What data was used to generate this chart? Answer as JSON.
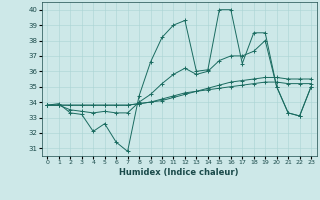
{
  "xlabel": "Humidex (Indice chaleur)",
  "ylabel": "",
  "xlim": [
    -0.5,
    23.5
  ],
  "ylim": [
    30.5,
    40.5
  ],
  "yticks": [
    31,
    32,
    33,
    34,
    35,
    36,
    37,
    38,
    39,
    40
  ],
  "xticks": [
    0,
    1,
    2,
    3,
    4,
    5,
    6,
    7,
    8,
    9,
    10,
    11,
    12,
    13,
    14,
    15,
    16,
    17,
    18,
    19,
    20,
    21,
    22,
    23
  ],
  "bg_color": "#cde8e8",
  "line_color": "#1a6b60",
  "grid_color": "#aad4d4",
  "lines": [
    {
      "x": [
        0,
        1,
        2,
        3,
        4,
        5,
        6,
        7,
        8,
        9,
        10,
        11,
        12,
        13,
        14,
        15,
        16,
        17,
        18,
        19,
        20,
        21,
        22,
        23
      ],
      "y": [
        33.8,
        33.9,
        33.3,
        33.2,
        32.1,
        32.6,
        31.4,
        30.8,
        34.4,
        36.6,
        38.2,
        39.0,
        39.3,
        36.0,
        36.1,
        40.0,
        40.0,
        36.5,
        38.5,
        38.5,
        35.0,
        33.3,
        33.1,
        35.0
      ]
    },
    {
      "x": [
        0,
        1,
        2,
        3,
        4,
        5,
        6,
        7,
        8,
        9,
        10,
        11,
        12,
        13,
        14,
        15,
        16,
        17,
        18,
        19,
        20,
        21,
        22,
        23
      ],
      "y": [
        33.8,
        33.8,
        33.5,
        33.4,
        33.3,
        33.4,
        33.3,
        33.3,
        34.0,
        34.5,
        35.2,
        35.8,
        36.2,
        35.8,
        36.0,
        36.7,
        37.0,
        37.0,
        37.3,
        38.0,
        35.0,
        33.3,
        33.1,
        35.0
      ]
    },
    {
      "x": [
        0,
        1,
        2,
        3,
        4,
        5,
        6,
        7,
        8,
        9,
        10,
        11,
        12,
        13,
        14,
        15,
        16,
        17,
        18,
        19,
        20,
        21,
        22,
        23
      ],
      "y": [
        33.8,
        33.8,
        33.8,
        33.8,
        33.8,
        33.8,
        33.8,
        33.8,
        33.9,
        34.0,
        34.2,
        34.4,
        34.6,
        34.7,
        34.8,
        34.9,
        35.0,
        35.1,
        35.2,
        35.3,
        35.3,
        35.2,
        35.2,
        35.2
      ]
    },
    {
      "x": [
        0,
        1,
        2,
        3,
        4,
        5,
        6,
        7,
        8,
        9,
        10,
        11,
        12,
        13,
        14,
        15,
        16,
        17,
        18,
        19,
        20,
        21,
        22,
        23
      ],
      "y": [
        33.8,
        33.8,
        33.8,
        33.8,
        33.8,
        33.8,
        33.8,
        33.8,
        33.9,
        34.0,
        34.1,
        34.3,
        34.5,
        34.7,
        34.9,
        35.1,
        35.3,
        35.4,
        35.5,
        35.6,
        35.6,
        35.5,
        35.5,
        35.5
      ]
    }
  ]
}
